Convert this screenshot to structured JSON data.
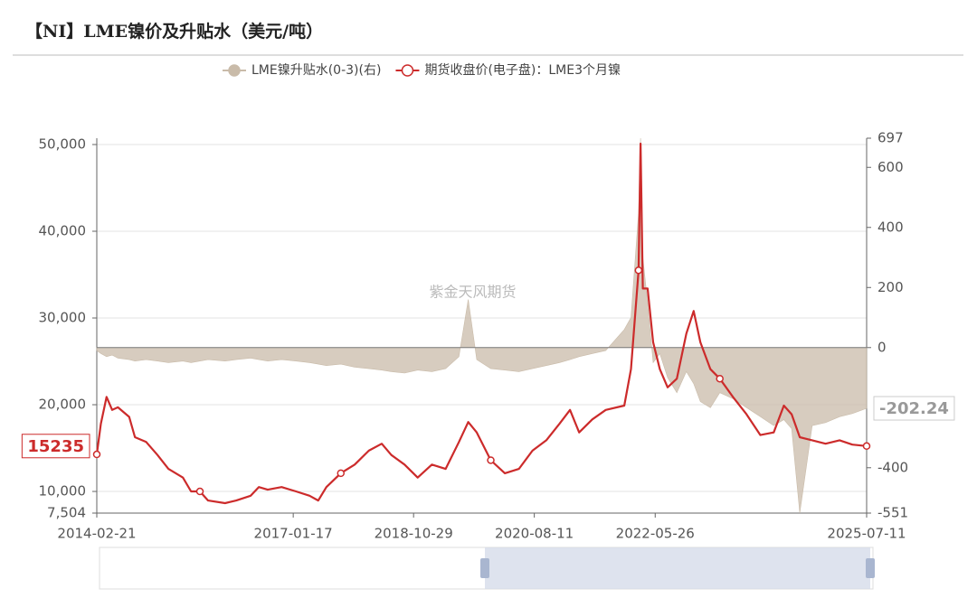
{
  "chart_data": {
    "type": "line",
    "title": "【NI】LME镍价及升贴水（美元/吨）",
    "watermark": "紫金天风期货",
    "legend": true,
    "x": [
      "2014-02-21",
      "2014-03-15",
      "2014-04-15",
      "2014-05-15",
      "2014-06-15",
      "2014-08-15",
      "2014-09-15",
      "2014-11-15",
      "2015-01-15",
      "2015-03-15",
      "2015-06-01",
      "2015-07-15",
      "2015-09-01",
      "2015-10-15",
      "2016-01-15",
      "2016-03-15",
      "2016-06-01",
      "2016-07-15",
      "2016-09-01",
      "2016-11-15",
      "2017-02-01",
      "2017-04-15",
      "2017-06-01",
      "2017-07-15",
      "2017-10-01",
      "2017-12-15",
      "2018-03-01",
      "2018-05-10",
      "2018-07-01",
      "2018-09-10",
      "2018-11-20",
      "2019-02-05",
      "2019-04-20",
      "2019-07-01",
      "2019-08-20",
      "2019-10-05",
      "2019-12-20",
      "2020-03-05",
      "2020-05-20",
      "2020-08-01",
      "2020-10-15",
      "2020-12-25",
      "2021-02-20",
      "2021-04-10",
      "2021-06-20",
      "2021-09-01",
      "2021-12-10",
      "2022-01-15",
      "2022-02-25",
      "2022-03-08",
      "2022-03-20",
      "2022-04-15",
      "2022-05-15",
      "2022-06-20",
      "2022-08-01",
      "2022-09-20",
      "2022-11-10",
      "2022-12-20",
      "2023-01-25",
      "2023-03-20",
      "2023-05-10",
      "2023-07-20",
      "2023-10-01",
      "2023-12-15",
      "2024-02-25",
      "2024-04-20",
      "2024-06-01",
      "2024-07-15",
      "2024-09-20",
      "2024-12-01",
      "2025-02-15",
      "2025-04-25",
      "2025-07-11"
    ],
    "xticks": [
      "2014-02-21",
      "2017-01-17",
      "2018-10-29",
      "2020-08-11",
      "2022-05-26",
      "2025-07-11"
    ],
    "ylim": [
      7504,
      50729
    ],
    "yticks": [
      {
        "value": 7504,
        "label": "7,504"
      },
      {
        "value": 10000,
        "label": "10,000"
      },
      {
        "value": 20000,
        "label": "20,000"
      },
      {
        "value": 30000,
        "label": "30,000"
      },
      {
        "value": 40000,
        "label": "40,000"
      },
      {
        "value": 50000,
        "label": "50,000"
      }
    ],
    "y2lim": [
      -551,
      697
    ],
    "y2ticks": [
      -551,
      -400,
      0,
      200,
      400,
      600,
      697
    ],
    "grid": true,
    "series": [
      {
        "name": "LME镍升贴水(0-3)(右)",
        "color": "#c9bba9",
        "axis": "y2",
        "kind": "area",
        "values": [
          -10,
          -20,
          -30,
          -25,
          -35,
          -40,
          -45,
          -40,
          -45,
          -50,
          -45,
          -50,
          -45,
          -40,
          -45,
          -40,
          -35,
          -40,
          -45,
          -40,
          -45,
          -50,
          -55,
          -60,
          -55,
          -65,
          -70,
          -75,
          -80,
          -85,
          -75,
          -80,
          -70,
          -30,
          160,
          -40,
          -70,
          -75,
          -80,
          -70,
          -60,
          -50,
          -40,
          -30,
          -20,
          -10,
          60,
          100,
          450,
          697,
          300,
          150,
          -50,
          -20,
          -100,
          -150,
          -80,
          -120,
          -180,
          -200,
          -150,
          -170,
          -200,
          -230,
          -260,
          -240,
          -270,
          -551,
          -260,
          -250,
          -230,
          -220,
          -202.24
        ]
      },
      {
        "name": "期货收盘价(电子盘)：LME3个月镍",
        "color": "#cc2b2b",
        "axis": "y",
        "kind": "line",
        "values": [
          14270,
          17800,
          20900,
          19400,
          19700,
          18600,
          16250,
          15700,
          14200,
          12600,
          11600,
          10000,
          10000,
          8950,
          8650,
          8950,
          9500,
          10500,
          10200,
          10500,
          10000,
          9500,
          8950,
          10500,
          12100,
          13100,
          14700,
          15500,
          14200,
          13100,
          11600,
          13100,
          12600,
          15700,
          18000,
          16800,
          13600,
          12100,
          12600,
          14700,
          15900,
          17800,
          19400,
          16800,
          18300,
          19400,
          19900,
          24100,
          35500,
          50100,
          33400,
          33400,
          27200,
          24100,
          22000,
          23000,
          28200,
          30800,
          27200,
          24100,
          23000,
          20900,
          18900,
          16500,
          16800,
          19900,
          18900,
          16250,
          15900,
          15500,
          15900,
          15400,
          15235
        ]
      }
    ]
  }
}
